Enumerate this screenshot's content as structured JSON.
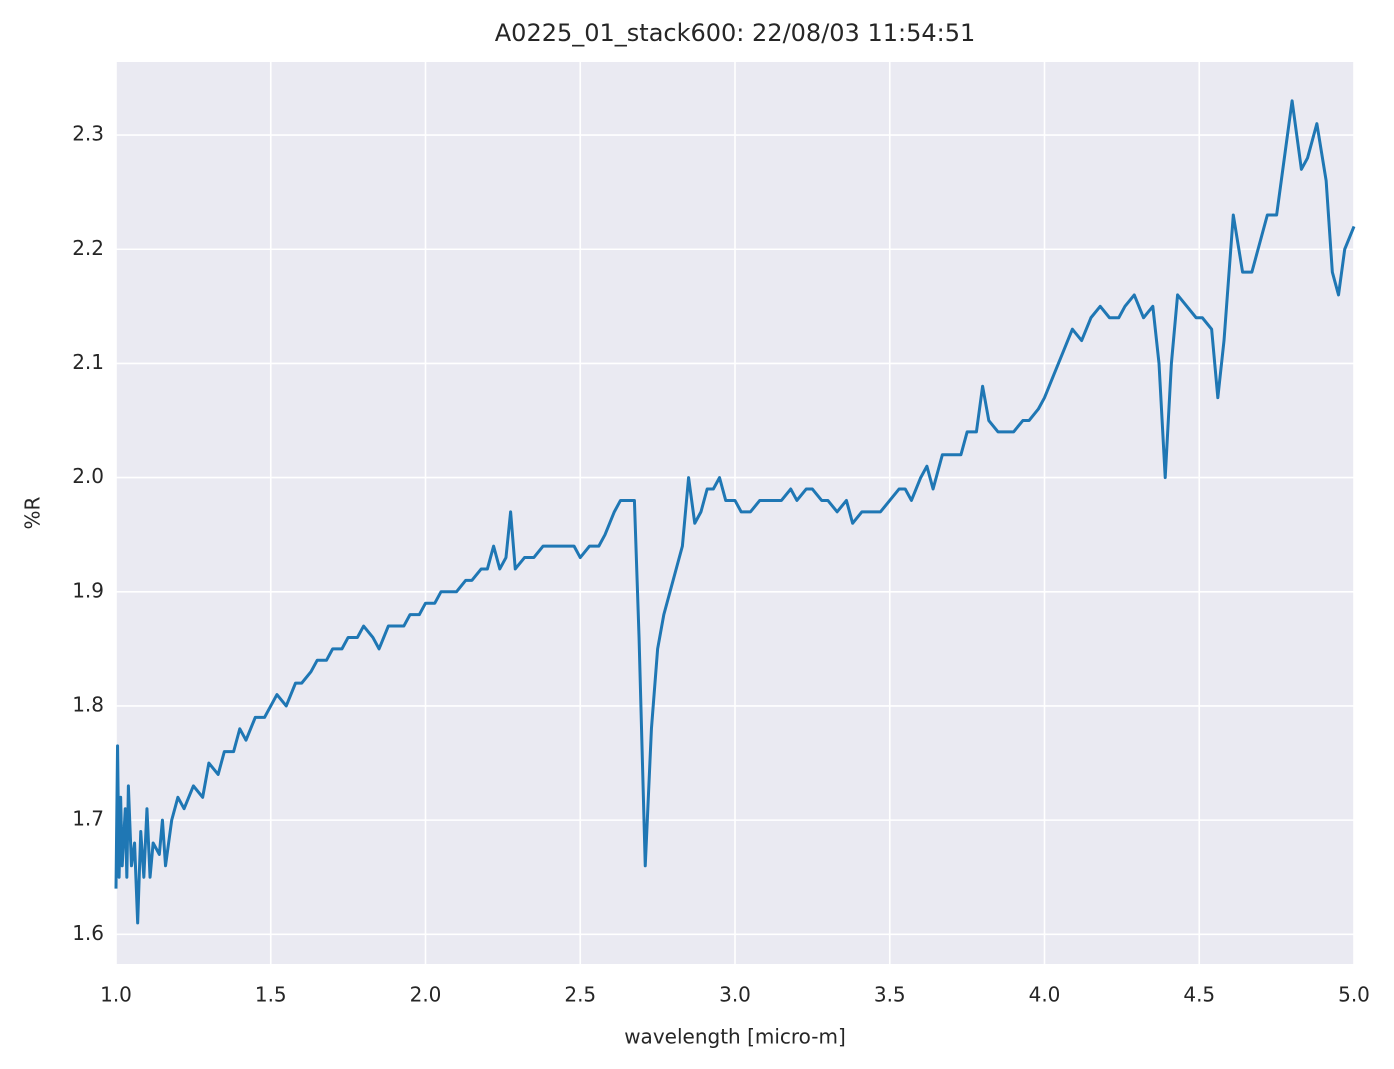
{
  "chart_data": {
    "type": "line",
    "title": "A0225_01_stack600:  22/08/03 11:54:51",
    "x_label": "wavelength [micro-m]",
    "y_label": "%R",
    "x": [
      1.0,
      1.005,
      1.01,
      1.015,
      1.02,
      1.03,
      1.035,
      1.04,
      1.05,
      1.06,
      1.07,
      1.08,
      1.09,
      1.1,
      1.11,
      1.12,
      1.14,
      1.15,
      1.16,
      1.18,
      1.2,
      1.22,
      1.25,
      1.28,
      1.3,
      1.33,
      1.35,
      1.38,
      1.4,
      1.42,
      1.45,
      1.48,
      1.5,
      1.52,
      1.55,
      1.58,
      1.6,
      1.63,
      1.65,
      1.68,
      1.7,
      1.73,
      1.75,
      1.78,
      1.8,
      1.83,
      1.85,
      1.88,
      1.9,
      1.93,
      1.95,
      1.98,
      2.0,
      2.03,
      2.05,
      2.08,
      2.1,
      2.13,
      2.15,
      2.18,
      2.2,
      2.22,
      2.24,
      2.26,
      2.275,
      2.29,
      2.32,
      2.35,
      2.38,
      2.4,
      2.43,
      2.45,
      2.48,
      2.5,
      2.53,
      2.56,
      2.58,
      2.61,
      2.63,
      2.65,
      2.66,
      2.675,
      2.69,
      2.71,
      2.73,
      2.75,
      2.77,
      2.8,
      2.83,
      2.85,
      2.87,
      2.89,
      2.91,
      2.93,
      2.95,
      2.97,
      3.0,
      3.02,
      3.05,
      3.08,
      3.12,
      3.15,
      3.18,
      3.2,
      3.23,
      3.25,
      3.28,
      3.3,
      3.33,
      3.36,
      3.38,
      3.41,
      3.44,
      3.47,
      3.5,
      3.53,
      3.55,
      3.57,
      3.6,
      3.62,
      3.64,
      3.67,
      3.7,
      3.73,
      3.75,
      3.78,
      3.8,
      3.82,
      3.85,
      3.88,
      3.9,
      3.93,
      3.95,
      3.98,
      4.0,
      4.03,
      4.06,
      4.09,
      4.12,
      4.15,
      4.18,
      4.21,
      4.24,
      4.26,
      4.29,
      4.32,
      4.35,
      4.37,
      4.39,
      4.41,
      4.43,
      4.46,
      4.49,
      4.51,
      4.54,
      4.56,
      4.58,
      4.61,
      4.64,
      4.67,
      4.7,
      4.72,
      4.75,
      4.78,
      4.8,
      4.83,
      4.85,
      4.88,
      4.91,
      4.93,
      4.95,
      4.97,
      5.0
    ],
    "series": [
      {
        "name": "%R",
        "color": "#1f77b4",
        "values": [
          1.64,
          1.765,
          1.65,
          1.72,
          1.66,
          1.71,
          1.65,
          1.73,
          1.66,
          1.68,
          1.61,
          1.69,
          1.65,
          1.71,
          1.65,
          1.68,
          1.67,
          1.7,
          1.66,
          1.7,
          1.72,
          1.71,
          1.73,
          1.72,
          1.75,
          1.74,
          1.76,
          1.76,
          1.78,
          1.77,
          1.79,
          1.79,
          1.8,
          1.81,
          1.8,
          1.82,
          1.82,
          1.83,
          1.84,
          1.84,
          1.85,
          1.85,
          1.86,
          1.86,
          1.87,
          1.86,
          1.85,
          1.87,
          1.87,
          1.87,
          1.88,
          1.88,
          1.89,
          1.89,
          1.9,
          1.9,
          1.9,
          1.91,
          1.91,
          1.92,
          1.92,
          1.94,
          1.92,
          1.93,
          1.97,
          1.92,
          1.93,
          1.93,
          1.94,
          1.94,
          1.94,
          1.94,
          1.94,
          1.93,
          1.94,
          1.94,
          1.95,
          1.97,
          1.98,
          1.98,
          1.98,
          1.98,
          1.86,
          1.66,
          1.78,
          1.85,
          1.88,
          1.91,
          1.94,
          2.0,
          1.96,
          1.97,
          1.99,
          1.99,
          2.0,
          1.98,
          1.98,
          1.97,
          1.97,
          1.98,
          1.98,
          1.98,
          1.99,
          1.98,
          1.99,
          1.99,
          1.98,
          1.98,
          1.97,
          1.98,
          1.96,
          1.97,
          1.97,
          1.97,
          1.98,
          1.99,
          1.99,
          1.98,
          2.0,
          2.01,
          1.99,
          2.02,
          2.02,
          2.02,
          2.04,
          2.04,
          2.08,
          2.05,
          2.04,
          2.04,
          2.04,
          2.05,
          2.05,
          2.06,
          2.07,
          2.09,
          2.11,
          2.13,
          2.12,
          2.14,
          2.15,
          2.14,
          2.14,
          2.15,
          2.16,
          2.14,
          2.15,
          2.1,
          2.0,
          2.1,
          2.16,
          2.15,
          2.14,
          2.14,
          2.13,
          2.07,
          2.12,
          2.23,
          2.18,
          2.18,
          2.21,
          2.23,
          2.23,
          2.29,
          2.33,
          2.27,
          2.28,
          2.31,
          2.26,
          2.18,
          2.16,
          2.2,
          2.22
        ]
      }
    ],
    "xlim": [
      1,
      5
    ],
    "xticks": [
      {
        "value": 1,
        "label": "1.0"
      },
      1.5,
      {
        "value": 2,
        "label": "2.0"
      },
      2.5,
      {
        "value": 3,
        "label": "3.0"
      },
      3.5,
      {
        "value": 4,
        "label": "4.0"
      },
      4.5,
      {
        "value": 5,
        "label": "5.0"
      }
    ],
    "ylim": [
      1.574,
      2.364
    ],
    "yticks": [
      1.6,
      1.7,
      1.8,
      1.9,
      {
        "value": 2,
        "label": "2.0"
      },
      2.1,
      2.2,
      2.3
    ],
    "grid": true
  }
}
